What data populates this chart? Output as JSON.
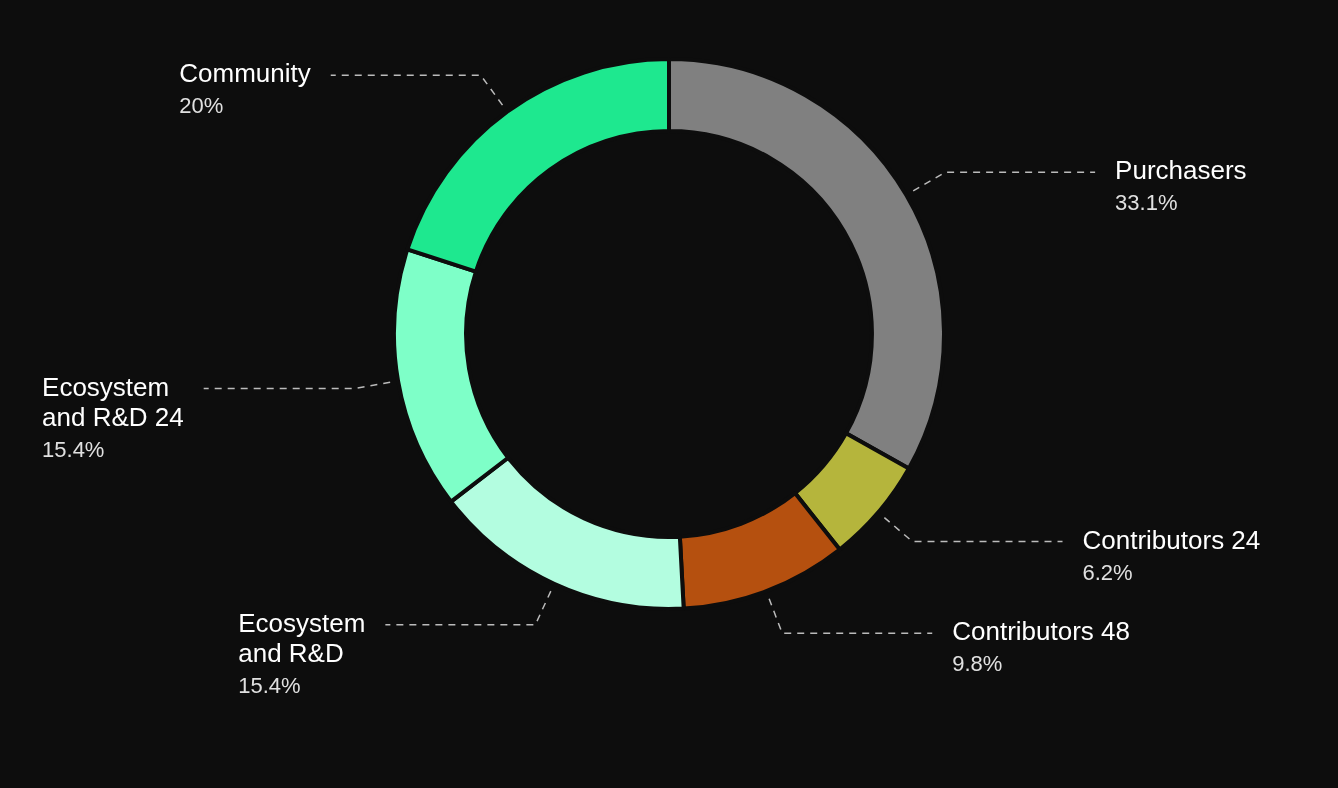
{
  "chart_data": {
    "type": "donut",
    "categories": [
      "Purchasers",
      "Contributors 24",
      "Contributors 48",
      "Ecosystem and R&D",
      "Ecosystem and R&D 24",
      "Community"
    ],
    "values": [
      33.1,
      6.2,
      9.8,
      15.4,
      15.4,
      20
    ],
    "colors": [
      "#808080",
      "#b5b53c",
      "#b5500f",
      "#b3fde0",
      "#7effc8",
      "#1ee88f"
    ],
    "value_labels": [
      "33.1%",
      "6.2%",
      "9.8%",
      "15.4%",
      "15.4%",
      "20%"
    ],
    "legend": false
  }
}
